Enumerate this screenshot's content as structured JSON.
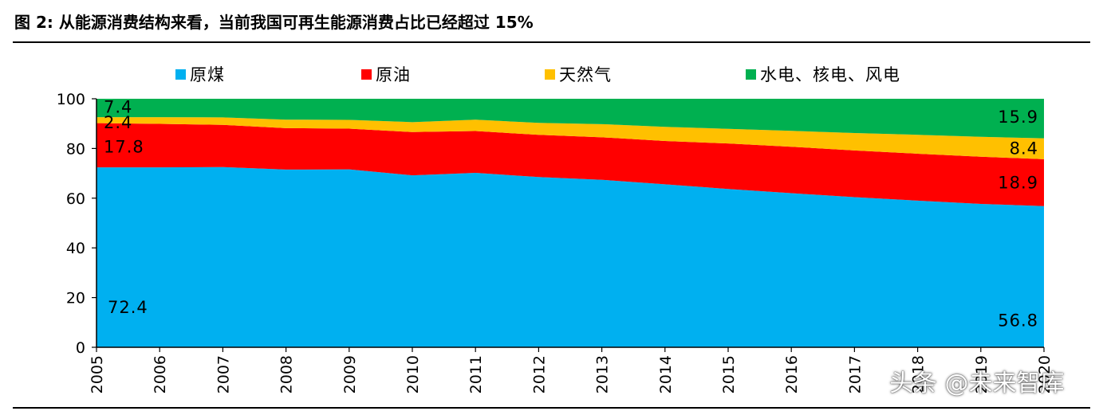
{
  "figure": {
    "title": "图 2:  从能源消费结构来看，当前我国可再生能源消费占比已经超过 15%"
  },
  "watermark": "头条 @未来智库",
  "colors": {
    "coal": "#00B0F0",
    "oil": "#FF0000",
    "gas": "#FFC000",
    "hydro_nuclear_wind": "#00B050"
  },
  "chart_data": {
    "type": "area",
    "stacked": true,
    "x": [
      "2005",
      "2006",
      "2007",
      "2008",
      "2009",
      "2010",
      "2011",
      "2012",
      "2013",
      "2014",
      "2015",
      "2016",
      "2017",
      "2018",
      "2019",
      "2020"
    ],
    "series": [
      {
        "name": "原煤",
        "color": "#00B0F0",
        "values": [
          72.4,
          72.4,
          72.5,
          71.5,
          71.6,
          69.2,
          70.2,
          68.5,
          67.4,
          65.6,
          63.7,
          62.0,
          60.4,
          59.0,
          57.7,
          56.8
        ]
      },
      {
        "name": "原油",
        "color": "#FF0000",
        "values": [
          17.8,
          17.5,
          17.0,
          16.7,
          16.4,
          17.4,
          16.8,
          17.0,
          17.1,
          17.4,
          18.3,
          18.7,
          18.8,
          18.9,
          19.0,
          18.9
        ]
      },
      {
        "name": "天然气",
        "color": "#FFC000",
        "values": [
          2.4,
          2.7,
          3.0,
          3.4,
          3.5,
          4.0,
          4.6,
          4.8,
          5.3,
          5.7,
          5.9,
          6.4,
          7.0,
          7.6,
          8.0,
          8.4
        ]
      },
      {
        "name": "水电、核电、风电",
        "color": "#00B050",
        "values": [
          7.4,
          7.4,
          7.5,
          8.4,
          8.5,
          9.4,
          8.4,
          9.7,
          10.2,
          11.3,
          12.1,
          12.9,
          13.8,
          14.5,
          15.3,
          15.9
        ]
      }
    ],
    "ylim": [
      0,
      100
    ],
    "yticks": [
      "0",
      "20",
      "40",
      "60",
      "80",
      "100"
    ],
    "legend_position": "top",
    "grid": false,
    "data_labels": {
      "start": [
        "72.4",
        "17.8",
        "2.4",
        "7.4"
      ],
      "end": [
        "56.8",
        "18.9",
        "8.4",
        "15.9"
      ]
    }
  }
}
